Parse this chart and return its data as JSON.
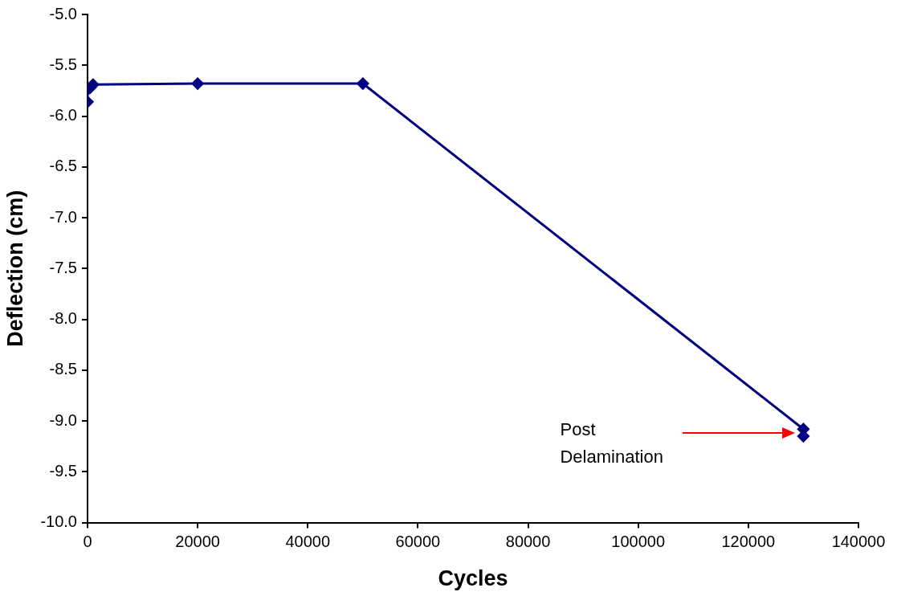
{
  "chart_data": {
    "type": "line",
    "xlabel": "Cycles",
    "ylabel": "Deflection (cm)",
    "x": [
      0,
      0,
      500,
      1000,
      20000,
      50000,
      130000,
      130000
    ],
    "series": [
      {
        "color": "#000080",
        "values": [
          -5.86,
          -5.74,
          -5.72,
          -5.69,
          -5.68,
          -5.68,
          -9.08,
          -9.15
        ]
      }
    ],
    "xlim": [
      0,
      140000
    ],
    "xticks": [
      0,
      20000,
      40000,
      60000,
      80000,
      100000,
      120000,
      140000
    ],
    "ylim": [
      -10,
      -5
    ],
    "yticks": [
      {
        "value": -10,
        "label": "-10.0"
      },
      {
        "value": -9.5,
        "label": "-9.5"
      },
      {
        "value": -9,
        "label": "-9.0"
      },
      {
        "value": -8.5,
        "label": "-8.5"
      },
      {
        "value": -8,
        "label": "-8.0"
      },
      {
        "value": -7.5,
        "label": "-7.5"
      },
      {
        "value": -7,
        "label": "-7.0"
      },
      {
        "value": -6.5,
        "label": "-6.5"
      },
      {
        "value": -6,
        "label": "-6.0"
      },
      {
        "value": -5.5,
        "label": "-5.5"
      },
      {
        "value": -5,
        "label": "-5.0"
      }
    ],
    "grid": false,
    "legend": false,
    "marker": "diamond",
    "line_style": "solid",
    "annotations": [
      "Post Delamination"
    ]
  }
}
